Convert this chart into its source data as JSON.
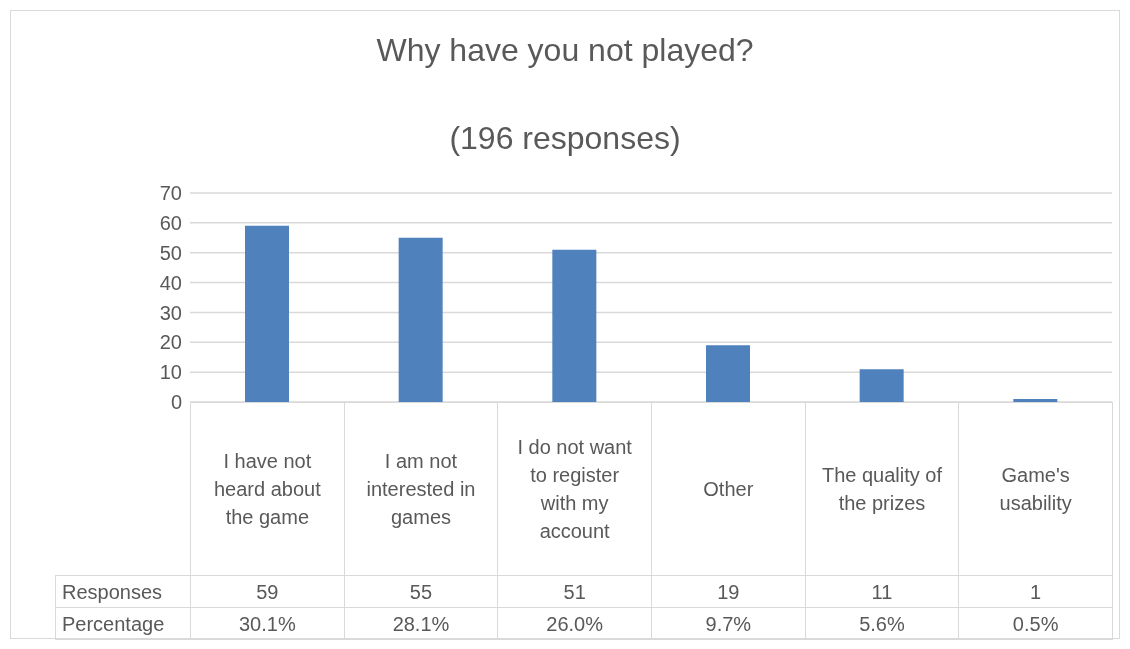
{
  "chart_data": {
    "type": "bar",
    "title": "Why have you not played?",
    "subtitle": "(196 responses)",
    "categories": [
      "I have not heard about the game",
      "I am not interested in games",
      "I do not want to register with my account",
      "Other",
      "The quality of the prizes",
      "Game's usability"
    ],
    "series": [
      {
        "name": "Responses",
        "color": "#4f81bd",
        "values": [
          59,
          55,
          51,
          19,
          11,
          1
        ]
      }
    ],
    "ylim": [
      0,
      70
    ],
    "yticks": [
      0,
      10,
      20,
      30,
      40,
      50,
      60,
      70
    ],
    "grid": "y",
    "legend": false,
    "data_labels": true,
    "annotations": [
      "Percentage",
      "30.1%",
      "28.1%",
      "26.0%",
      "9.7%",
      "5.6%",
      "0.5%"
    ]
  }
}
